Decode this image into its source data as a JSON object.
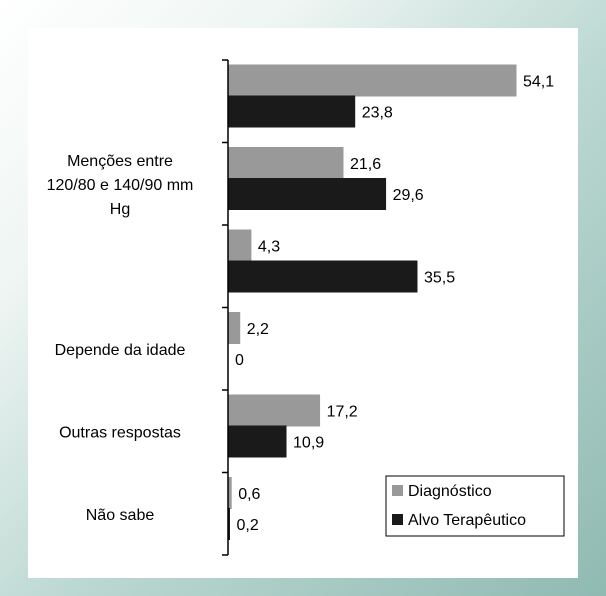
{
  "chart_data": {
    "type": "bar",
    "orientation": "horizontal",
    "title": "",
    "xlabel": "",
    "ylabel": "",
    "categories": [
      [
        ""
      ],
      [
        "Menções entre",
        "120/80 e 140/90 mm",
        "Hg"
      ],
      [
        ""
      ],
      [
        "Depende da idade"
      ],
      [
        "Outras respostas"
      ],
      [
        "Não sabe"
      ]
    ],
    "series": [
      {
        "name": "Diagnóstico",
        "color": "#999999",
        "values": [
          54.1,
          21.6,
          4.3,
          2.2,
          17.2,
          0.6
        ],
        "labels": [
          "54,1",
          "21,6",
          "4,3",
          "2,2",
          "17,2",
          "0,6"
        ]
      },
      {
        "name": "Alvo Terapêutico",
        "color": "#1a1a1a",
        "values": [
          23.8,
          29.6,
          35.5,
          0,
          10.9,
          0.2
        ],
        "labels": [
          "23,8",
          "29,6",
          "35,5",
          "0",
          "10,9",
          "0,2"
        ]
      }
    ],
    "xlim": [
      0,
      60
    ],
    "grid": false,
    "legend": "bottom-right"
  }
}
